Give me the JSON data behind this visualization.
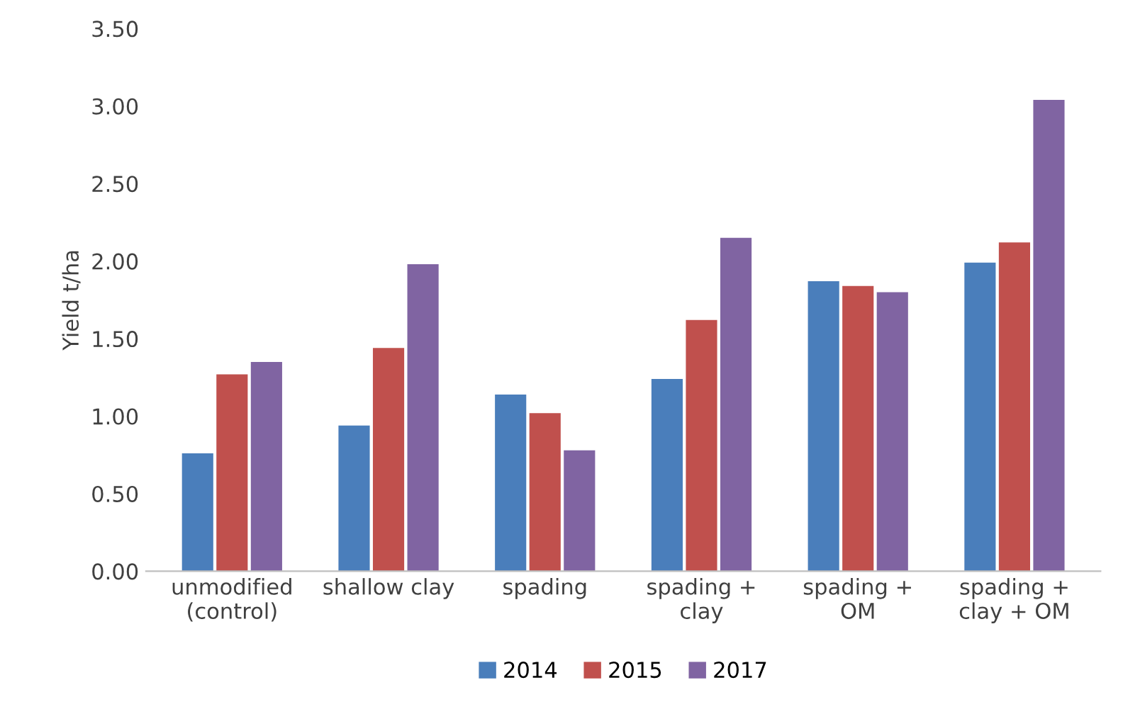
{
  "chart_data": {
    "type": "bar",
    "ylabel": "Yield t/ha",
    "categories": [
      "unmodified\n(control)",
      "shallow clay",
      "spading",
      "spading +\nclay",
      "spading +\nOM",
      "spading +\nclay + OM"
    ],
    "series": [
      {
        "name": "2014",
        "color": "#4a7ebb",
        "values": [
          0.76,
          0.94,
          1.14,
          1.24,
          1.87,
          1.99
        ]
      },
      {
        "name": "2015",
        "color": "#c0504d",
        "values": [
          1.27,
          1.44,
          1.02,
          1.62,
          1.84,
          2.12
        ]
      },
      {
        "name": "2017",
        "color": "#8064a2",
        "values": [
          1.35,
          1.98,
          0.78,
          2.15,
          1.8,
          3.04
        ]
      }
    ],
    "ylim": [
      0,
      3.5
    ],
    "yticks": [
      {
        "value": 0,
        "label": "0.00"
      },
      {
        "value": 0.5,
        "label": "0.50"
      },
      {
        "value": 1,
        "label": "1.00"
      },
      {
        "value": 1.5,
        "label": "1.50"
      },
      {
        "value": 2,
        "label": "2.00"
      },
      {
        "value": 2.5,
        "label": "2.50"
      },
      {
        "value": 3,
        "label": "3.00"
      },
      {
        "value": 3.5,
        "label": "3.50"
      }
    ],
    "grid": false,
    "legend": "bottom"
  }
}
